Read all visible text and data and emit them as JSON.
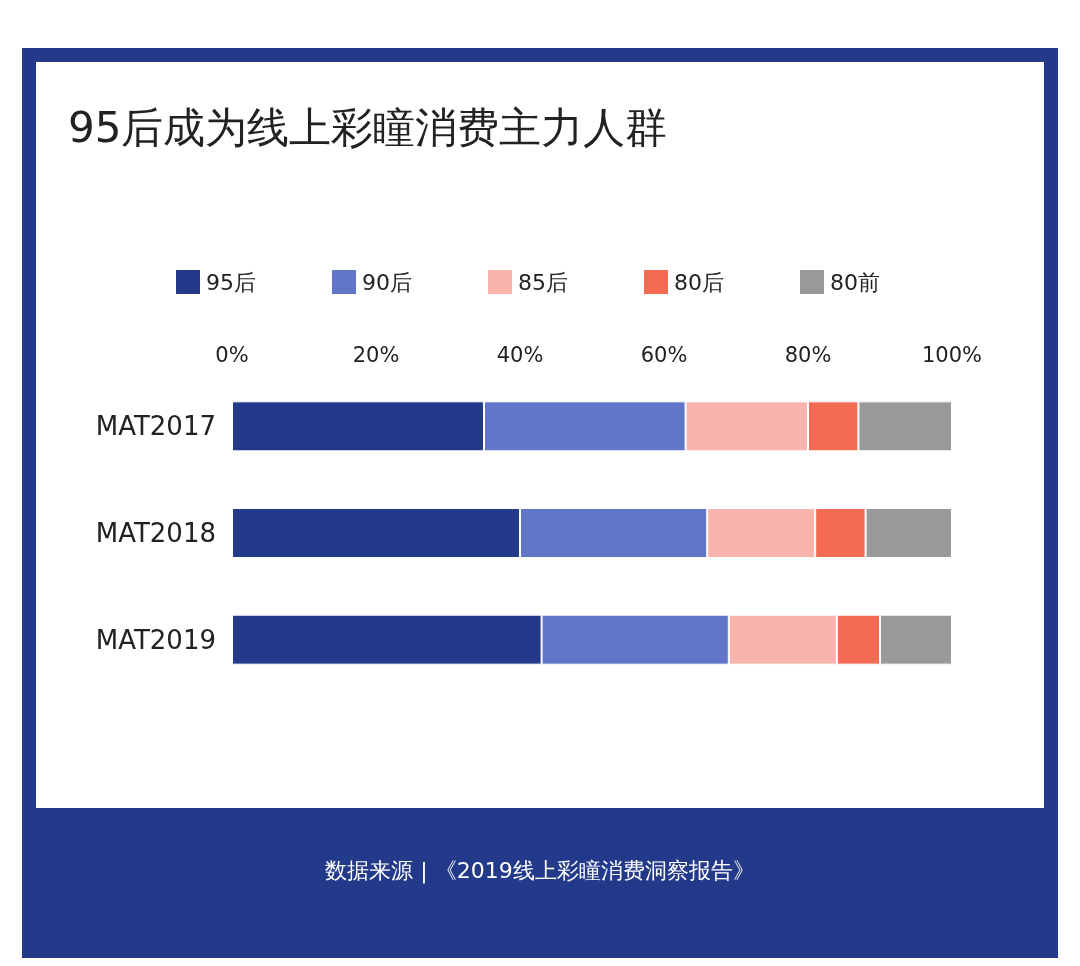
{
  "chart_data": {
    "type": "bar",
    "orientation": "horizontal",
    "stacked": true,
    "title": "95后成为线上彩瞳消费主力人群",
    "categories": [
      "MAT2017",
      "MAT2018",
      "MAT2019"
    ],
    "series": [
      {
        "name": "95后",
        "color": "#233a8a",
        "values": [
          35,
          40,
          43
        ]
      },
      {
        "name": "90后",
        "color": "#6276c8",
        "values": [
          28,
          26,
          26
        ]
      },
      {
        "name": "85后",
        "color": "#f9b4ad",
        "values": [
          17,
          15,
          15
        ]
      },
      {
        "name": "80后",
        "color": "#f46a52",
        "values": [
          7,
          7,
          6
        ]
      },
      {
        "name": "80前",
        "color": "#999999",
        "values": [
          13,
          12,
          10
        ]
      }
    ],
    "xlim": [
      0,
      100
    ],
    "xticks": [
      {
        "value": 0,
        "label": "0%"
      },
      {
        "value": 20,
        "label": "20%"
      },
      {
        "value": 40,
        "label": "40%"
      },
      {
        "value": 60,
        "label": "60%"
      },
      {
        "value": 80,
        "label": "80%"
      },
      {
        "value": 100,
        "label": "100%"
      }
    ],
    "grid": false,
    "legend": "top",
    "annotations": [
      "数据来源 | 《2019线上彩瞳消费洞察报告》"
    ]
  }
}
